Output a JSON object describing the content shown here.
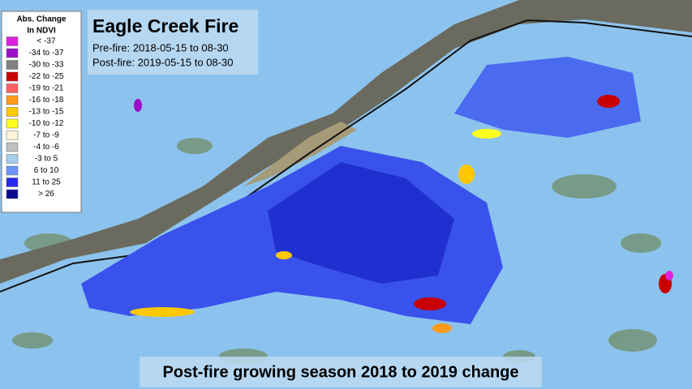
{
  "legend": {
    "title_lines": [
      "Abs. Change",
      "In NDVI"
    ],
    "items": [
      {
        "label": "< -37",
        "color": "#e020e0"
      },
      {
        "label": "-34 to -37",
        "color": "#9a10c8"
      },
      {
        "label": "-30 to -33",
        "color": "#808080"
      },
      {
        "label": "-22 to -25",
        "color": "#c80000"
      },
      {
        "label": "-19 to -21",
        "color": "#ff6060"
      },
      {
        "label": "-16 to -18",
        "color": "#ff9a1a"
      },
      {
        "label": "-13 to -15",
        "color": "#ffc800"
      },
      {
        "label": "-10 to -12",
        "color": "#ffff20"
      },
      {
        "label": "-7 to -9",
        "color": "#fff3d8"
      },
      {
        "label": "-4 to -6",
        "color": "#c0c0c0"
      },
      {
        "label": "-3 to 5",
        "color": "#a6cdea"
      },
      {
        "label": "6 to 10",
        "color": "#6c96f6"
      },
      {
        "label": "11 to 25",
        "color": "#2828f0"
      },
      {
        "label": "> 26",
        "color": "#0a0a90"
      }
    ]
  },
  "header": {
    "title": "Eagle Creek Fire",
    "lines": [
      "Pre-fire: 2018-05-15 to 08-30",
      "Post-fire: 2019-05-15 to 08-30"
    ]
  },
  "caption": "Post-fire growing season 2018 to 2019 change"
}
